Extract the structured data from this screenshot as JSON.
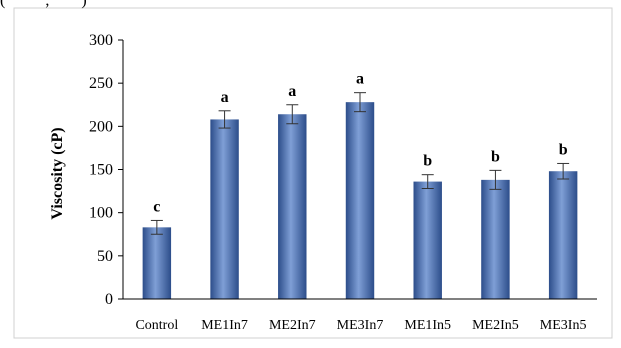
{
  "header_fragment": "(          ,        )",
  "chart_data": {
    "type": "bar",
    "title": "",
    "xlabel": "",
    "ylabel": "Viscosity (cP)",
    "ylim": [
      0,
      300
    ],
    "yticks": [
      0,
      50,
      100,
      150,
      200,
      250,
      300
    ],
    "grid": false,
    "categories": [
      "Control",
      "ME1In7",
      "ME2In7",
      "ME3In7",
      "ME1In5",
      "ME2In5",
      "ME3In5"
    ],
    "values": [
      83,
      208,
      214,
      228,
      136,
      138,
      148
    ],
    "errors": [
      8,
      10,
      11,
      11,
      8,
      11,
      9
    ],
    "significance_letters": [
      "c",
      "a",
      "a",
      "a",
      "b",
      "b",
      "b"
    ],
    "colors": {
      "bar": "#4a70b5",
      "bar_dark": "#2c4d8a",
      "bar_light": "#7f9fd6",
      "axis": "#000000",
      "frame": "#d0d0d0"
    }
  }
}
